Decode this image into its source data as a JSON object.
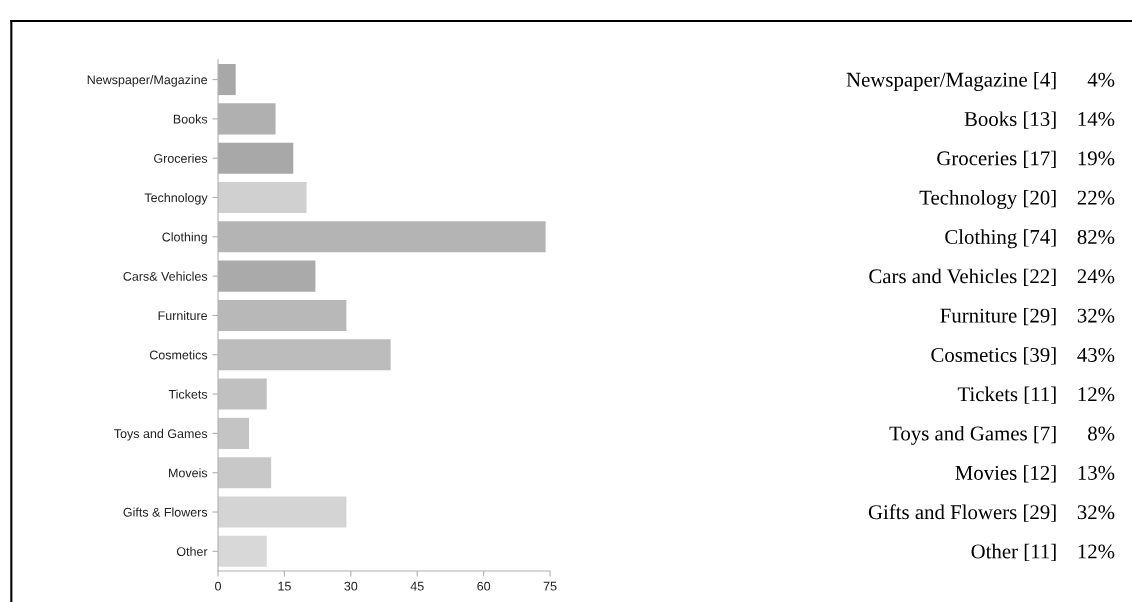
{
  "chart_data": [
    {
      "type": "bar",
      "orientation": "horizontal",
      "categories": [
        "Newspaper/Magazine",
        "Books",
        "Groceries",
        "Technology",
        "Clothing",
        "Cars& Vehicles",
        "Furniture",
        "Cosmetics",
        "Tickets",
        "Toys and Games",
        "Moveis",
        "Gifts & Flowers",
        "Other"
      ],
      "values": [
        4,
        13,
        17,
        20,
        74,
        22,
        29,
        39,
        11,
        7,
        12,
        29,
        11
      ],
      "colors": [
        "#a8a8a8",
        "#b0b0b0",
        "#a8a8a8",
        "#d0d0d0",
        "#b4b4b4",
        "#aaaaaa",
        "#b8b8b8",
        "#bcbcbc",
        "#c0c0c0",
        "#c4c4c4",
        "#c8c8c8",
        "#d4d4d4",
        "#d8d8d8"
      ],
      "xlim": [
        0,
        75
      ],
      "xticks": [
        0,
        15,
        30,
        45,
        60,
        75
      ],
      "grid": false,
      "legend": false
    },
    {
      "type": "other",
      "annotations": [
        "Newspaper/Magazine [4]",
        "4%",
        "Books [13]",
        "14%",
        "Groceries [17]",
        "19%",
        "Technology [20]",
        "22%",
        "Clothing [74]",
        "82%",
        "Cars and Vehicles [22]",
        "24%",
        "Furniture [29]",
        "32%",
        "Cosmetics [39]",
        "43%",
        "Tickets [11]",
        "12%",
        "Toys and Games [7]",
        "8%",
        "Movies [12]",
        "13%",
        "Gifts and Flowers [29]",
        "32%",
        "Other [11]",
        "12%"
      ]
    }
  ]
}
